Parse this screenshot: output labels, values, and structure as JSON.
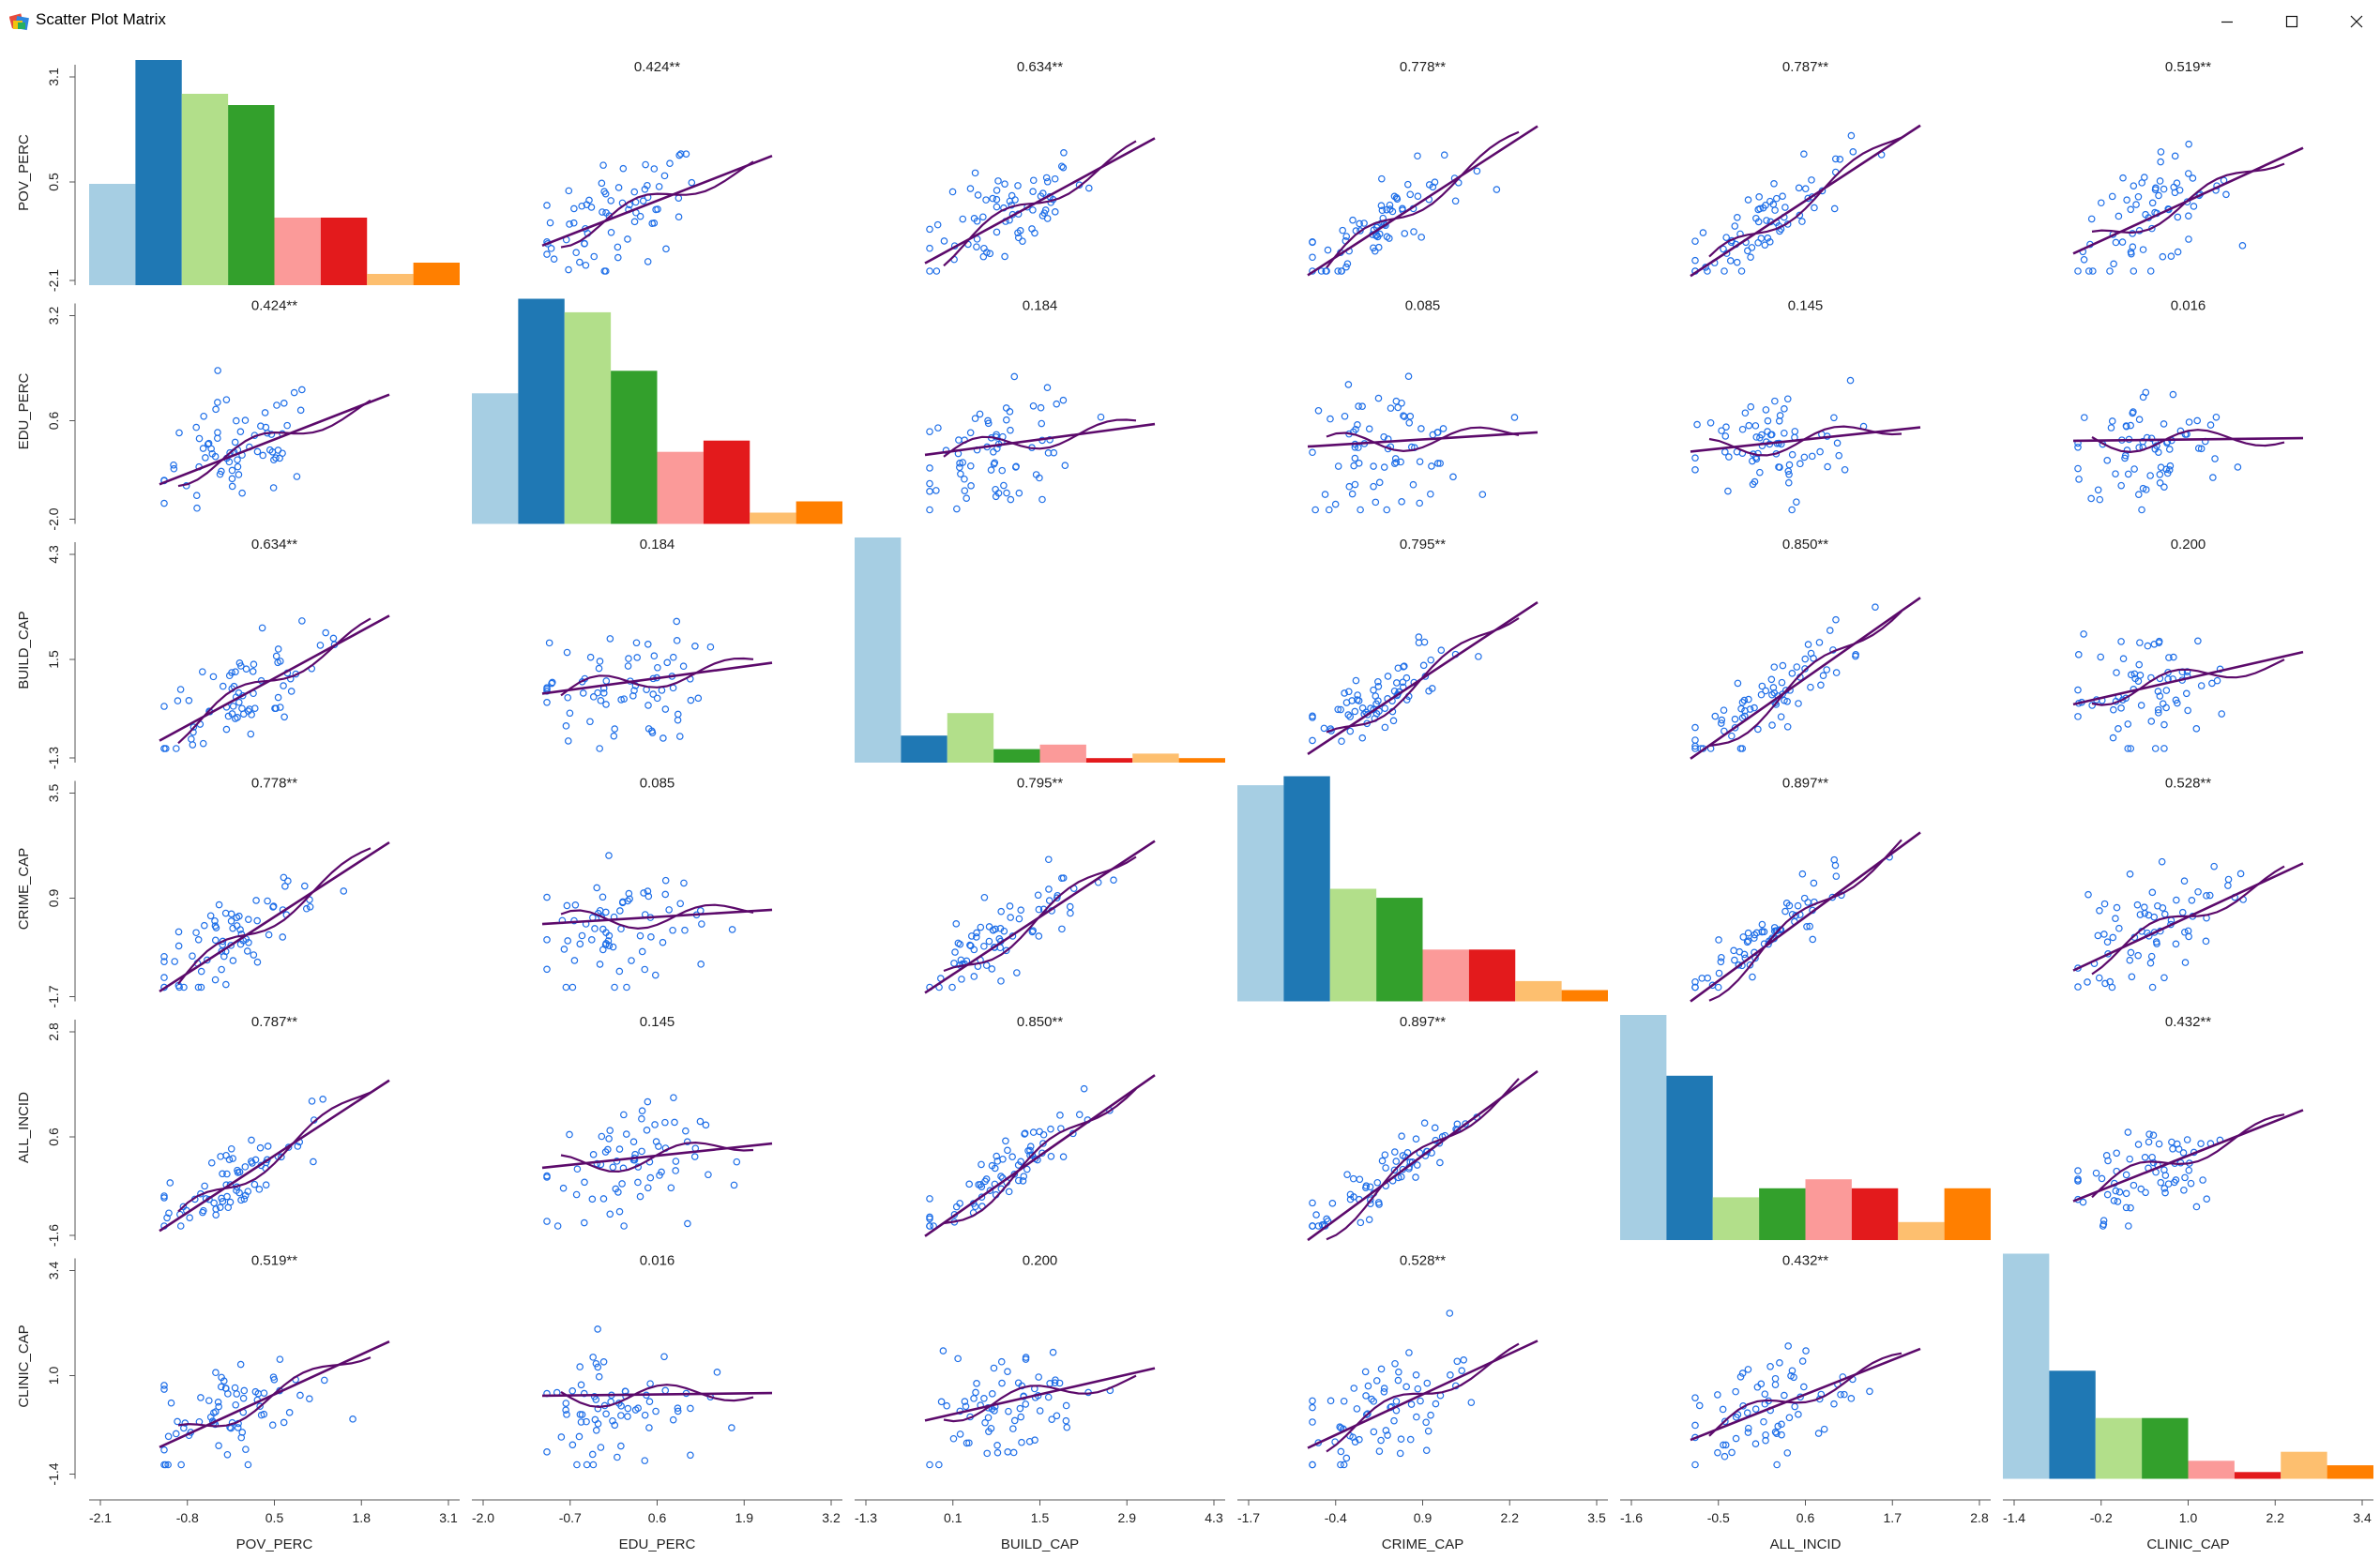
{
  "window": {
    "title": "Scatter Plot Matrix",
    "icon": "chart-app-icon",
    "controls": [
      "minimize-icon",
      "maximize-icon",
      "close-icon"
    ]
  },
  "chart_data": {
    "type": "scatter-matrix",
    "title": "",
    "variables": [
      "POV_PERC",
      "EDU_PERC",
      "BUILD_CAP",
      "CRIME_CAP",
      "ALL_INCID",
      "CLINIC_CAP"
    ],
    "axis_ranges": [
      [
        -2.1,
        3.1
      ],
      [
        -2.0,
        3.2
      ],
      [
        -1.3,
        4.3
      ],
      [
        -1.7,
        3.5
      ],
      [
        -1.6,
        2.8
      ],
      [
        -1.4,
        3.4
      ]
    ],
    "y_ticks": [
      [
        "3.1",
        "0.5",
        "-2.1"
      ],
      [
        "3.2",
        "0.6",
        "-2.0"
      ],
      [
        "4.3",
        "1.5",
        "-1.3"
      ],
      [
        "3.5",
        "0.9",
        "-1.7"
      ],
      [
        "2.8",
        "0.6",
        "-1.6"
      ],
      [
        "3.4",
        "1.0",
        "-1.4"
      ]
    ],
    "x_ticks": [
      [
        "-2.1",
        "-0.8",
        "0.5",
        "1.8",
        "3.1"
      ],
      [
        "-2.0",
        "-0.7",
        "0.6",
        "1.9",
        "3.2"
      ],
      [
        "-1.3",
        "0.1",
        "1.5",
        "2.9",
        "4.3"
      ],
      [
        "-1.7",
        "-0.4",
        "0.9",
        "2.2",
        "3.5"
      ],
      [
        "-1.6",
        "-0.5",
        "0.6",
        "1.7",
        "2.8"
      ],
      [
        "-1.4",
        "-0.2",
        "1.0",
        "2.2",
        "3.4"
      ]
    ],
    "correlations": [
      [
        "",
        "0.424**",
        "0.634**",
        "0.778**",
        "0.787**",
        "0.519**"
      ],
      [
        "0.424**",
        "",
        "0.184",
        "0.085",
        "0.145",
        "0.016"
      ],
      [
        "0.634**",
        "0.184",
        "",
        "0.795**",
        "0.850**",
        "0.200"
      ],
      [
        "0.778**",
        "0.085",
        "0.795**",
        "",
        "0.897**",
        "0.528**"
      ],
      [
        "0.787**",
        "0.145",
        "0.850**",
        "0.897**",
        "",
        "0.432**"
      ],
      [
        "0.519**",
        "0.016",
        "0.200",
        "0.528**",
        "0.432**",
        ""
      ]
    ],
    "histograms": [
      [
        0.45,
        1.0,
        0.85,
        0.8,
        0.3,
        0.3,
        0.05,
        0.1
      ],
      [
        0.58,
        1.0,
        0.94,
        0.68,
        0.32,
        0.37,
        0.05,
        0.1
      ],
      [
        1.0,
        0.12,
        0.22,
        0.06,
        0.08,
        0.02,
        0.04,
        0.02
      ],
      [
        0.96,
        1.0,
        0.5,
        0.46,
        0.23,
        0.23,
        0.09,
        0.05
      ],
      [
        1.0,
        0.73,
        0.19,
        0.23,
        0.27,
        0.23,
        0.08,
        0.23
      ],
      [
        1.0,
        0.48,
        0.27,
        0.27,
        0.08,
        0.03,
        0.12,
        0.06
      ]
    ],
    "bar_colors": [
      "#a6cee3",
      "#1f78b4",
      "#b2df8a",
      "#33a02c",
      "#fb9a99",
      "#e31a1c",
      "#fdbf6f",
      "#ff7f00"
    ],
    "point_color": "#1f6fe8",
    "fit_line_color": "#5c0a6b",
    "lowess_color": "#5c0a6b",
    "grid": false,
    "legend": "none"
  }
}
